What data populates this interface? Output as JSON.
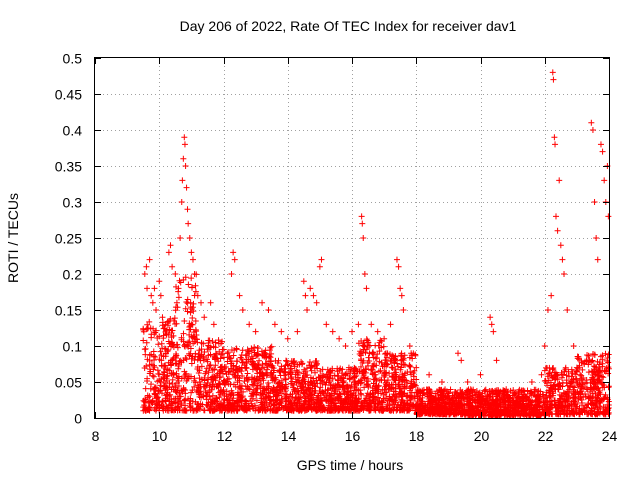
{
  "chart_data": {
    "type": "scatter",
    "title": "Day 206 of 2022, Rate Of TEC Index for receiver dav1",
    "xlabel": "GPS time / hours",
    "ylabel": "ROTI / TECUs",
    "xlim": [
      8,
      24
    ],
    "ylim": [
      0,
      0.5
    ],
    "x_ticks": [
      8,
      10,
      12,
      14,
      16,
      18,
      20,
      22,
      24
    ],
    "x_tick_labels": [
      "8",
      "10",
      "12",
      "14",
      "16",
      "18",
      "20",
      "22",
      "24"
    ],
    "y_ticks": [
      0,
      0.05,
      0.1,
      0.15,
      0.2,
      0.25,
      0.3,
      0.35,
      0.4,
      0.45,
      0.5
    ],
    "y_tick_labels": [
      "0",
      "0.05",
      "0.1",
      "0.15",
      "0.2",
      "0.25",
      "0.3",
      "0.35",
      "0.4",
      "0.45",
      "0.5"
    ],
    "grid": true,
    "marker": "plus",
    "color": "#ff0000",
    "series": [
      {
        "values": [
          [
            9.55,
            0.2
          ],
          [
            9.6,
            0.21
          ],
          [
            9.7,
            0.22
          ],
          [
            9.62,
            0.18
          ],
          [
            9.75,
            0.17
          ],
          [
            9.8,
            0.16
          ],
          [
            9.9,
            0.15
          ],
          [
            9.85,
            0.18
          ],
          [
            10.0,
            0.19
          ],
          [
            10.05,
            0.17
          ],
          [
            10.1,
            0.14
          ],
          [
            10.2,
            0.13
          ],
          [
            10.3,
            0.23
          ],
          [
            10.35,
            0.24
          ],
          [
            10.4,
            0.21
          ],
          [
            10.5,
            0.2
          ],
          [
            10.55,
            0.16
          ],
          [
            10.6,
            0.18
          ],
          [
            10.65,
            0.25
          ],
          [
            10.7,
            0.3
          ],
          [
            10.72,
            0.33
          ],
          [
            10.75,
            0.36
          ],
          [
            10.78,
            0.39
          ],
          [
            10.8,
            0.38
          ],
          [
            10.82,
            0.35
          ],
          [
            10.85,
            0.32
          ],
          [
            10.88,
            0.29
          ],
          [
            10.9,
            0.27
          ],
          [
            10.95,
            0.25
          ],
          [
            11.0,
            0.23
          ],
          [
            11.05,
            0.22
          ],
          [
            11.1,
            0.2
          ],
          [
            11.2,
            0.17
          ],
          [
            11.3,
            0.16
          ],
          [
            11.4,
            0.14
          ],
          [
            11.6,
            0.16
          ],
          [
            11.7,
            0.13
          ],
          [
            12.3,
            0.23
          ],
          [
            12.35,
            0.22
          ],
          [
            12.25,
            0.2
          ],
          [
            12.5,
            0.17
          ],
          [
            12.6,
            0.15
          ],
          [
            12.8,
            0.13
          ],
          [
            13.0,
            0.12
          ],
          [
            13.2,
            0.16
          ],
          [
            13.4,
            0.15
          ],
          [
            13.6,
            0.13
          ],
          [
            13.8,
            0.12
          ],
          [
            14.0,
            0.11
          ],
          [
            14.3,
            0.12
          ],
          [
            14.5,
            0.19
          ],
          [
            14.55,
            0.17
          ],
          [
            14.6,
            0.15
          ],
          [
            14.7,
            0.18
          ],
          [
            14.8,
            0.17
          ],
          [
            14.9,
            0.16
          ],
          [
            15.0,
            0.21
          ],
          [
            15.05,
            0.22
          ],
          [
            15.2,
            0.13
          ],
          [
            15.4,
            0.12
          ],
          [
            15.6,
            0.11
          ],
          [
            15.8,
            0.1
          ],
          [
            16.0,
            0.12
          ],
          [
            16.2,
            0.13
          ],
          [
            16.3,
            0.28
          ],
          [
            16.32,
            0.27
          ],
          [
            16.35,
            0.25
          ],
          [
            16.4,
            0.2
          ],
          [
            16.45,
            0.18
          ],
          [
            16.6,
            0.13
          ],
          [
            16.8,
            0.12
          ],
          [
            17.0,
            0.11
          ],
          [
            17.2,
            0.13
          ],
          [
            17.4,
            0.22
          ],
          [
            17.45,
            0.21
          ],
          [
            17.5,
            0.18
          ],
          [
            17.55,
            0.17
          ],
          [
            17.6,
            0.15
          ],
          [
            17.8,
            0.1
          ],
          [
            18.0,
            0.07
          ],
          [
            18.4,
            0.06
          ],
          [
            18.8,
            0.05
          ],
          [
            19.3,
            0.09
          ],
          [
            19.4,
            0.08
          ],
          [
            19.6,
            0.05
          ],
          [
            20.0,
            0.06
          ],
          [
            20.3,
            0.14
          ],
          [
            20.35,
            0.13
          ],
          [
            20.4,
            0.12
          ],
          [
            20.5,
            0.08
          ],
          [
            20.8,
            0.04
          ],
          [
            21.2,
            0.03
          ],
          [
            21.6,
            0.05
          ],
          [
            21.9,
            0.06
          ],
          [
            22.0,
            0.1
          ],
          [
            22.1,
            0.15
          ],
          [
            22.2,
            0.17
          ],
          [
            22.25,
            0.48
          ],
          [
            22.27,
            0.47
          ],
          [
            22.3,
            0.39
          ],
          [
            22.32,
            0.38
          ],
          [
            22.35,
            0.28
          ],
          [
            22.4,
            0.26
          ],
          [
            22.45,
            0.33
          ],
          [
            22.5,
            0.24
          ],
          [
            22.55,
            0.22
          ],
          [
            22.6,
            0.2
          ],
          [
            22.7,
            0.15
          ],
          [
            22.9,
            0.1
          ],
          [
            23.1,
            0.06
          ],
          [
            23.3,
            0.08
          ],
          [
            23.45,
            0.41
          ],
          [
            23.5,
            0.4
          ],
          [
            23.55,
            0.3
          ],
          [
            23.6,
            0.25
          ],
          [
            23.65,
            0.22
          ],
          [
            23.75,
            0.38
          ],
          [
            23.8,
            0.37
          ],
          [
            23.85,
            0.33
          ],
          [
            23.9,
            0.3
          ],
          [
            23.95,
            0.35
          ],
          [
            23.98,
            0.28
          ]
        ]
      }
    ],
    "dense_band": [
      {
        "x": [
          9.5,
          10.5
        ],
        "y": [
          0.01,
          0.14
        ]
      },
      {
        "x": [
          10.5,
          11.2
        ],
        "y": [
          0.01,
          0.2
        ]
      },
      {
        "x": [
          11.2,
          12.0
        ],
        "y": [
          0.01,
          0.11
        ]
      },
      {
        "x": [
          12.0,
          13.5
        ],
        "y": [
          0.01,
          0.1
        ]
      },
      {
        "x": [
          13.5,
          15.0
        ],
        "y": [
          0.01,
          0.08
        ]
      },
      {
        "x": [
          15.0,
          16.2
        ],
        "y": [
          0.01,
          0.07
        ]
      },
      {
        "x": [
          16.2,
          17.0
        ],
        "y": [
          0.01,
          0.11
        ]
      },
      {
        "x": [
          17.0,
          18.0
        ],
        "y": [
          0.01,
          0.09
        ]
      },
      {
        "x": [
          18.0,
          19.5
        ],
        "y": [
          0.005,
          0.04
        ]
      },
      {
        "x": [
          19.5,
          21.0
        ],
        "y": [
          0.003,
          0.04
        ]
      },
      {
        "x": [
          21.0,
          22.0
        ],
        "y": [
          0.003,
          0.04
        ]
      },
      {
        "x": [
          22.0,
          23.0
        ],
        "y": [
          0.005,
          0.07
        ]
      },
      {
        "x": [
          23.0,
          24.0
        ],
        "y": [
          0.005,
          0.09
        ]
      }
    ]
  }
}
